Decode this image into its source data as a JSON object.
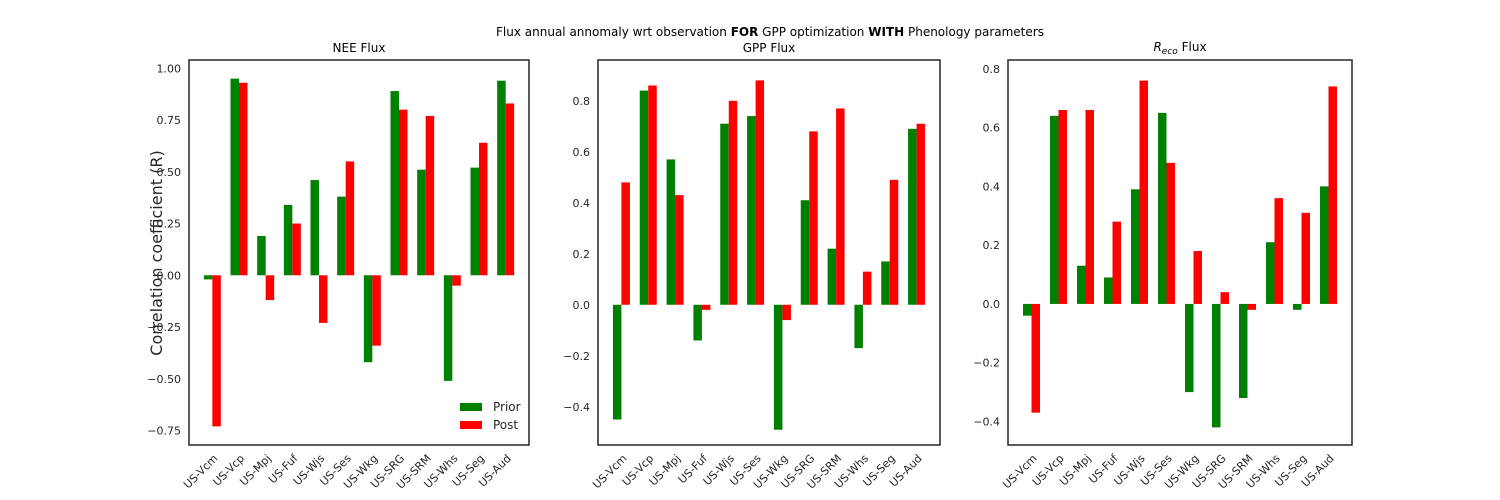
{
  "figure": {
    "suptitle_pre": "Flux annual annomaly wrt observation ",
    "suptitle_b1": "FOR",
    "suptitle_mid": " GPP optimization ",
    "suptitle_b2": "WITH",
    "suptitle_post": " Phenology parameters",
    "ylabel": "Correlation coefficient (R)",
    "colors": {
      "prior": "#008000",
      "post": "#ff0000"
    }
  },
  "legend": {
    "prior": "Prior",
    "post": "Post"
  },
  "chart_data": [
    {
      "type": "bar",
      "title": "NEE Flux",
      "categories": [
        "US-Vcm",
        "US-Vcp",
        "US-Mpj",
        "US-Fuf",
        "US-Wjs",
        "US-Ses",
        "US-Wkg",
        "US-SRG",
        "US-SRM",
        "US-Whs",
        "US-Seg",
        "US-Aud"
      ],
      "series": [
        {
          "name": "Prior",
          "values": [
            -0.02,
            0.95,
            0.19,
            0.34,
            0.46,
            0.38,
            -0.42,
            0.89,
            0.51,
            -0.51,
            0.52,
            0.94
          ]
        },
        {
          "name": "Post",
          "values": [
            -0.73,
            0.93,
            -0.12,
            0.25,
            -0.23,
            0.55,
            -0.34,
            0.8,
            0.77,
            -0.05,
            0.64,
            0.83
          ]
        }
      ],
      "ylim": [
        -0.82,
        1.04
      ],
      "yticks": [
        -0.75,
        -0.5,
        -0.25,
        0.0,
        0.25,
        0.5,
        0.75,
        1.0
      ],
      "ytick_labels": [
        "−0.75",
        "−0.50",
        "−0.25",
        "0.00",
        "0.25",
        "0.50",
        "0.75",
        "1.00"
      ],
      "legend": "lower-right",
      "grid": false
    },
    {
      "type": "bar",
      "title": "GPP Flux",
      "categories": [
        "US-Vcm",
        "US-Vcp",
        "US-Mpj",
        "US-Fuf",
        "US-Wjs",
        "US-Ses",
        "US-Wkg",
        "US-SRG",
        "US-SRM",
        "US-Whs",
        "US-Seg",
        "US-Aud"
      ],
      "series": [
        {
          "name": "Prior",
          "values": [
            -0.45,
            0.84,
            0.57,
            -0.14,
            0.71,
            0.74,
            -0.49,
            0.41,
            0.22,
            -0.17,
            0.17,
            0.69
          ]
        },
        {
          "name": "Post",
          "values": [
            0.48,
            0.86,
            0.43,
            -0.02,
            0.8,
            0.88,
            -0.06,
            0.68,
            0.77,
            0.13,
            0.49,
            0.71
          ]
        }
      ],
      "ylim": [
        -0.55,
        0.96
      ],
      "yticks": [
        -0.4,
        -0.2,
        0.0,
        0.2,
        0.4,
        0.6,
        0.8
      ],
      "ytick_labels": [
        "−0.4",
        "−0.2",
        "0.0",
        "0.2",
        "0.4",
        "0.6",
        "0.8"
      ],
      "grid": false
    },
    {
      "type": "bar",
      "title_main": "R",
      "title_sub": "eco",
      "title_rest": " Flux",
      "categories": [
        "US-Vcm",
        "US-Vcp",
        "US-Mpj",
        "US-Fuf",
        "US-Wjs",
        "US-Ses",
        "US-Wkg",
        "US-SRG",
        "US-SRM",
        "US-Whs",
        "US-Seg",
        "US-Aud"
      ],
      "series": [
        {
          "name": "Prior",
          "values": [
            -0.04,
            0.64,
            0.13,
            0.09,
            0.39,
            0.65,
            -0.3,
            -0.42,
            -0.32,
            0.21,
            -0.02,
            0.4
          ]
        },
        {
          "name": "Post",
          "values": [
            -0.37,
            0.66,
            0.66,
            0.28,
            0.76,
            0.48,
            0.18,
            0.04,
            -0.02,
            0.36,
            0.31,
            0.74
          ]
        }
      ],
      "ylim": [
        -0.48,
        0.83
      ],
      "yticks": [
        -0.4,
        -0.2,
        0.0,
        0.2,
        0.4,
        0.6,
        0.8
      ],
      "ytick_labels": [
        "−0.4",
        "−0.2",
        "0.0",
        "0.2",
        "0.4",
        "0.6",
        "0.8"
      ],
      "grid": false
    }
  ]
}
